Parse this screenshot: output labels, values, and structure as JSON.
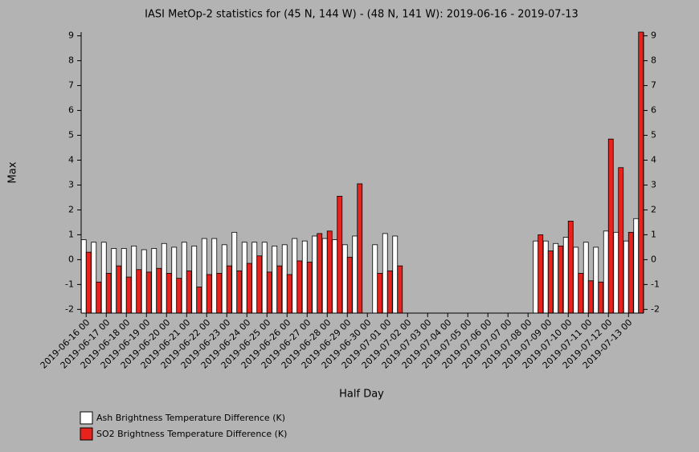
{
  "chart_data": {
    "type": "bar",
    "title": "IASI MetOp-2 statistics for (45 N, 144 W) - (48 N, 141 W): 2019-06-16 - 2019-07-13",
    "xlabel": "Half Day",
    "ylabel": "Max",
    "categories": [
      "2019-06-16 00",
      null,
      "2019-06-17 00",
      null,
      "2019-06-18 00",
      null,
      "2019-06-19 00",
      null,
      "2019-06-20 00",
      null,
      "2019-06-21 00",
      null,
      "2019-06-22 00",
      null,
      "2019-06-23 00",
      null,
      "2019-06-24 00",
      null,
      "2019-06-25 00",
      null,
      "2019-06-26 00",
      null,
      "2019-06-27 00",
      null,
      "2019-06-28 00",
      null,
      "2019-06-29 00",
      null,
      "2019-06-30 00",
      null,
      "2019-07-01 00",
      null,
      "2019-07-02 00",
      null,
      "2019-07-03 00",
      null,
      "2019-07-04 00",
      null,
      "2019-07-05 00",
      null,
      "2019-07-06 00",
      null,
      "2019-07-07 00",
      null,
      "2019-07-08 00",
      null,
      "2019-07-09 00",
      null,
      "2019-07-10 00",
      null,
      "2019-07-11 00",
      null,
      "2019-07-12 00",
      null,
      "2019-07-13 00",
      null
    ],
    "series": [
      {
        "name": "Ash Brightness Temperature Difference (K)",
        "color": "#ffffff",
        "values": [
          0.8,
          0.7,
          0.7,
          0.45,
          0.45,
          0.55,
          0.4,
          0.45,
          0.65,
          0.5,
          0.7,
          0.55,
          0.85,
          0.85,
          0.6,
          1.1,
          0.7,
          0.7,
          0.7,
          0.55,
          0.6,
          0.85,
          0.75,
          0.95,
          0.85,
          0.8,
          0.6,
          0.95,
          null,
          0.6,
          1.05,
          0.95,
          null,
          null,
          null,
          null,
          null,
          null,
          null,
          null,
          null,
          null,
          null,
          null,
          null,
          0.75,
          0.75,
          0.65,
          0.9,
          0.5,
          0.7,
          0.5,
          1.15,
          1.1,
          0.75,
          1.65
        ]
      },
      {
        "name": "SO2 Brightness Temperature Difference (K)",
        "color": "#e8231e",
        "values": [
          0.3,
          -0.9,
          -0.55,
          -0.25,
          -0.7,
          -0.4,
          -0.5,
          -0.35,
          -0.55,
          -0.75,
          -0.45,
          -1.1,
          -0.6,
          -0.55,
          -0.25,
          -0.45,
          -0.15,
          0.15,
          -0.5,
          -0.25,
          -0.6,
          -0.05,
          -0.1,
          1.05,
          1.15,
          2.55,
          0.1,
          3.05,
          null,
          -0.55,
          -0.45,
          -0.25,
          null,
          null,
          null,
          null,
          null,
          null,
          null,
          null,
          null,
          null,
          null,
          null,
          null,
          1.0,
          0.35,
          0.55,
          1.55,
          -0.55,
          -0.85,
          -0.9,
          4.85,
          3.7,
          1.1,
          9.15
        ]
      }
    ],
    "ylim": [
      -2.15,
      9.15
    ],
    "yticks": [
      -2,
      -1,
      0,
      1,
      2,
      3,
      4,
      5,
      6,
      7,
      8,
      9
    ]
  }
}
